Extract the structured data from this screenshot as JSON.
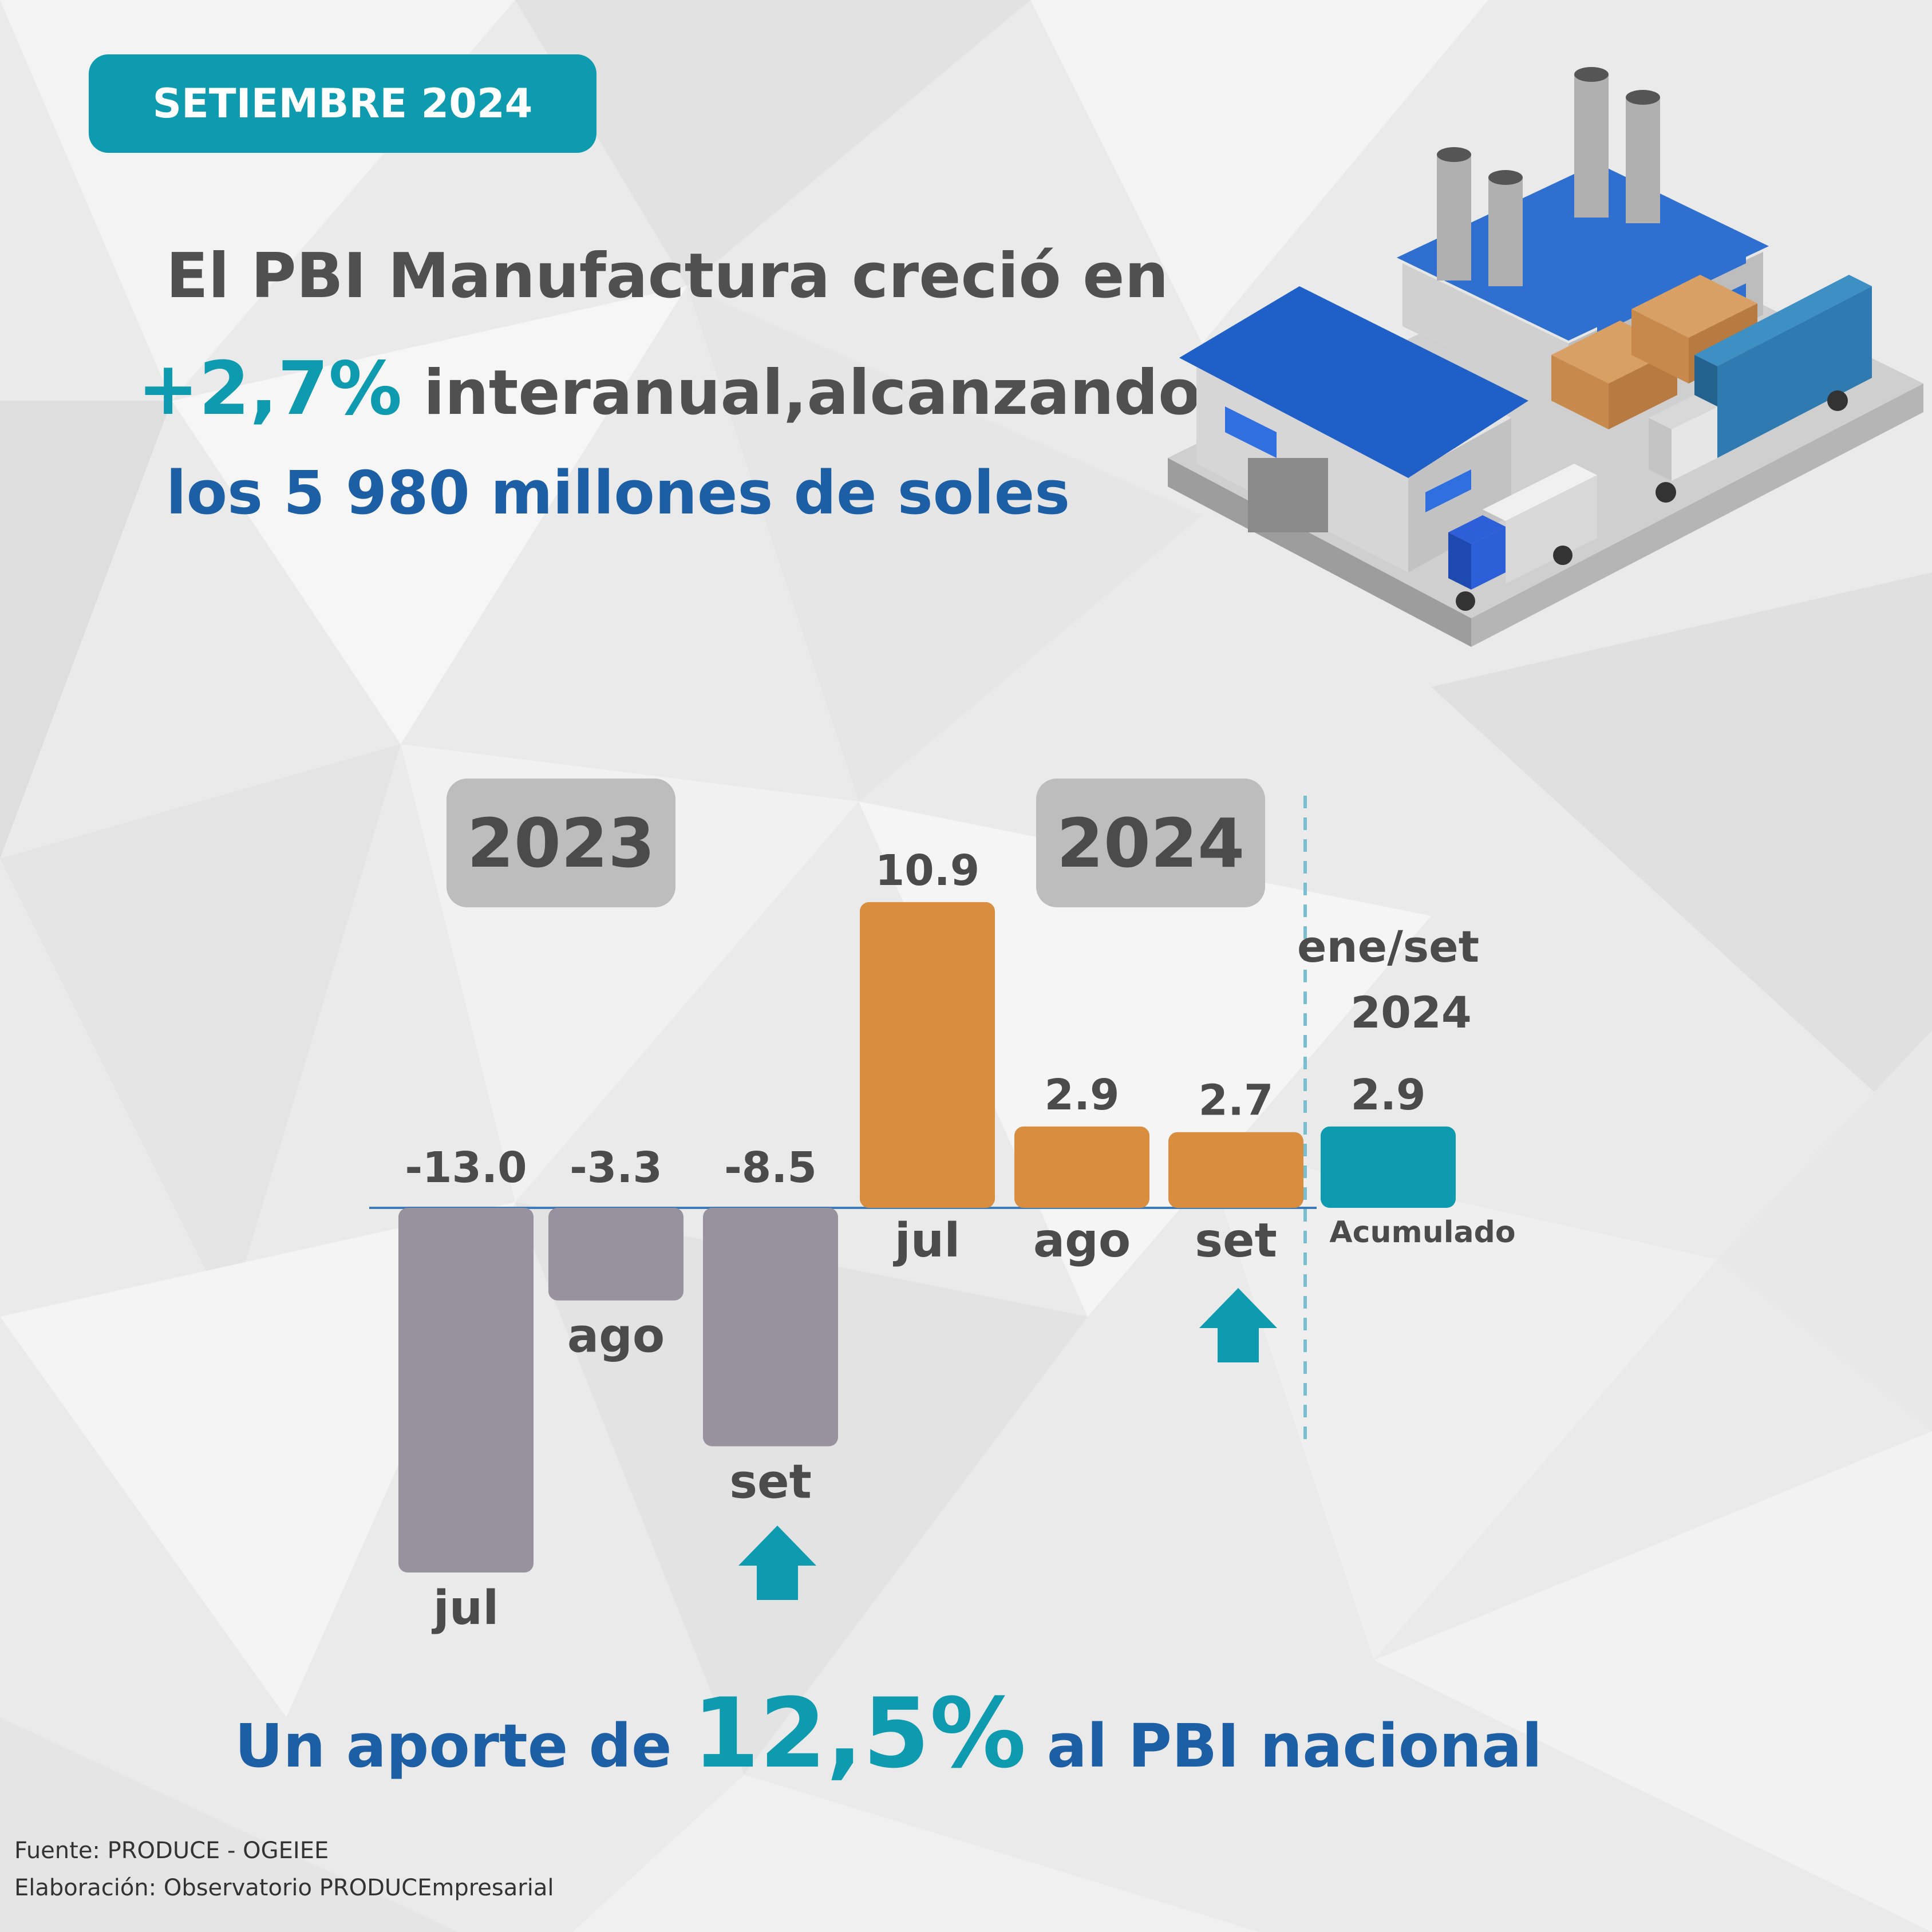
{
  "badge": "SETIEMBRE 2024",
  "headline": {
    "line1": "El PBI Manufactura creció en",
    "highlight": "+2,7%",
    "line2_rest": " interanual,alcanzando",
    "line3": "los 5 980 millones de soles"
  },
  "colors": {
    "accent_teal": "#0e9bb0",
    "headline_blue": "#1d5fa4",
    "bar_2023": "#97929e",
    "bar_2024": "#d98e3f",
    "bar_accum": "#0e9bb0"
  },
  "illustration_icon": "factory-warehouse-trucks-icon",
  "chart_data": {
    "type": "bar",
    "groups": [
      {
        "label": "2023",
        "categories": [
          "jul",
          "ago",
          "set"
        ],
        "values": [
          -13.0,
          -3.3,
          -8.5
        ]
      },
      {
        "label": "2024",
        "categories": [
          "jul",
          "ago",
          "set"
        ],
        "values": [
          10.9,
          2.9,
          2.7
        ]
      }
    ],
    "accumulated": {
      "period_line1": "ene/set",
      "period_line2": "2024",
      "value": 2.9,
      "label": "Acumulado"
    },
    "value_labels": [
      "-13.0",
      "-3.3",
      "-8.5",
      "10.9",
      "2.9",
      "2.7",
      "2.9"
    ],
    "growth_arrows_under": [
      "set 2023",
      "set 2024"
    ]
  },
  "bottom": {
    "prefix": "Un aporte de ",
    "big": "12,5%",
    "suffix": " al PBI nacional"
  },
  "footer": {
    "source": "Fuente: PRODUCE - OGEIEE",
    "credits": "Elaboración: Observatorio PRODUCEmpresarial"
  }
}
